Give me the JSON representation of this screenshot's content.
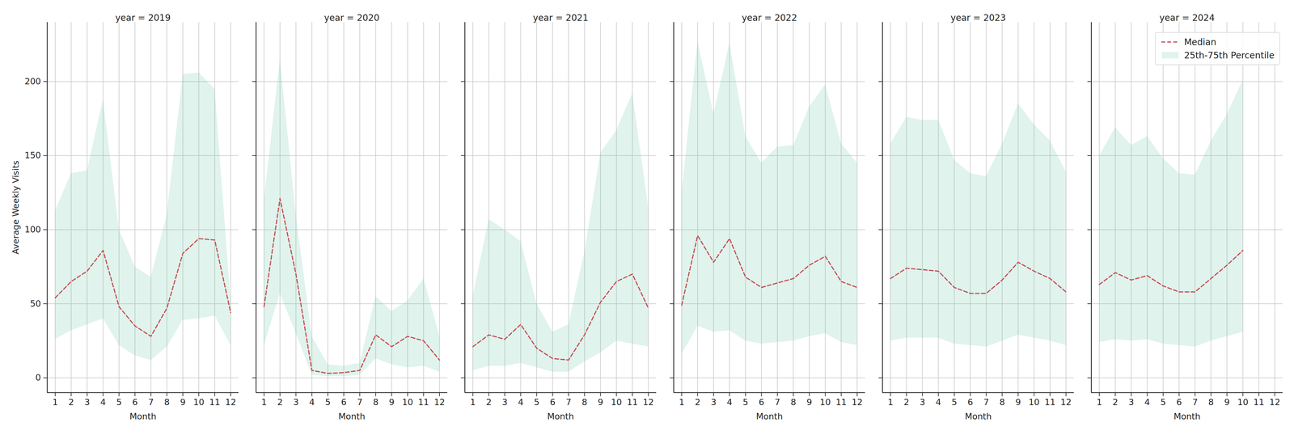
{
  "chart_data": [
    {
      "type": "line",
      "title": "year = 2019",
      "x_label": "Month",
      "y_label": "Average Weekly Visits",
      "x": [
        1,
        2,
        3,
        4,
        5,
        6,
        7,
        8,
        9,
        10,
        11,
        12
      ],
      "series": [
        {
          "name": "Median",
          "type": "line",
          "color": "#c44e52",
          "line_style": "dashed",
          "values": [
            54,
            65,
            72,
            86,
            48,
            35,
            28,
            47,
            84,
            94,
            93,
            44
          ]
        },
        {
          "name": "25th-75th Percentile",
          "type": "area",
          "color": "#66c2a5",
          "low": [
            26,
            32,
            36,
            40,
            22,
            15,
            12,
            21,
            39,
            40,
            42,
            22
          ],
          "high": [
            113,
            138,
            140,
            188,
            100,
            75,
            68,
            110,
            205,
            206,
            195,
            52
          ]
        }
      ],
      "xlim": [
        0.5,
        12.5
      ],
      "ylim": [
        -10,
        240
      ],
      "xticks": [
        1,
        2,
        3,
        4,
        5,
        6,
        7,
        8,
        9,
        10,
        11,
        12
      ],
      "yticks": [
        0,
        50,
        100,
        150,
        200
      ],
      "grid": true
    },
    {
      "type": "line",
      "title": "year = 2020",
      "x_label": "Month",
      "x": [
        1,
        2,
        3,
        4,
        5,
        6,
        7,
        8,
        9,
        10,
        11,
        12
      ],
      "series": [
        {
          "name": "Median",
          "type": "line",
          "color": "#c44e52",
          "line_style": "dashed",
          "values": [
            48,
            121,
            70,
            5,
            3,
            3.5,
            5,
            29,
            21,
            28,
            25,
            12
          ]
        },
        {
          "name": "25th-75th Percentile",
          "type": "area",
          "color": "#66c2a5",
          "low": [
            22,
            57,
            30,
            2,
            1,
            1,
            2,
            13,
            9,
            7,
            8,
            4
          ],
          "high": [
            120,
            215,
            110,
            28,
            9,
            8,
            10,
            55,
            45,
            52,
            67,
            28
          ]
        }
      ],
      "xlim": [
        0.5,
        12.5
      ],
      "ylim": [
        -10,
        240
      ],
      "xticks": [
        1,
        2,
        3,
        4,
        5,
        6,
        7,
        8,
        9,
        10,
        11,
        12
      ],
      "yticks": [
        0,
        50,
        100,
        150,
        200
      ],
      "grid": true,
      "tick_labels": "x"
    },
    {
      "type": "line",
      "title": "year = 2021",
      "x_label": "Month",
      "x": [
        1,
        2,
        3,
        4,
        5,
        6,
        7,
        8,
        9,
        10,
        11,
        12
      ],
      "series": [
        {
          "name": "Median",
          "type": "line",
          "color": "#c44e52",
          "line_style": "dashed",
          "values": [
            21,
            29,
            26,
            36,
            20,
            13,
            12,
            29,
            51,
            65,
            70,
            47
          ]
        },
        {
          "name": "25th-75th Percentile",
          "type": "area",
          "color": "#66c2a5",
          "low": [
            5,
            8,
            8,
            10,
            7,
            4,
            4,
            11,
            17,
            25,
            23,
            21
          ],
          "high": [
            55,
            107,
            100,
            92,
            50,
            31,
            36,
            85,
            152,
            167,
            192,
            115
          ]
        }
      ],
      "xlim": [
        0.5,
        12.5
      ],
      "ylim": [
        -10,
        240
      ],
      "xticks": [
        1,
        2,
        3,
        4,
        5,
        6,
        7,
        8,
        9,
        10,
        11,
        12
      ],
      "yticks": [
        0,
        50,
        100,
        150,
        200
      ],
      "grid": true,
      "tick_labels": "x"
    },
    {
      "type": "line",
      "title": "year = 2022",
      "x_label": "Month",
      "x": [
        1,
        2,
        3,
        4,
        5,
        6,
        7,
        8,
        9,
        10,
        11,
        12
      ],
      "series": [
        {
          "name": "Median",
          "type": "line",
          "color": "#c44e52",
          "line_style": "dashed",
          "values": [
            49,
            96,
            78,
            94,
            68,
            61,
            64,
            67,
            76,
            82,
            65,
            61
          ]
        },
        {
          "name": "25th-75th Percentile",
          "type": "area",
          "color": "#66c2a5",
          "low": [
            16,
            35,
            31,
            32,
            25,
            23,
            24,
            25,
            28,
            30,
            24,
            22
          ],
          "high": [
            125,
            227,
            178,
            226,
            163,
            145,
            156,
            157,
            183,
            198,
            158,
            145
          ]
        }
      ],
      "xlim": [
        0.5,
        12.5
      ],
      "ylim": [
        -10,
        240
      ],
      "xticks": [
        1,
        2,
        3,
        4,
        5,
        6,
        7,
        8,
        9,
        10,
        11,
        12
      ],
      "yticks": [
        0,
        50,
        100,
        150,
        200
      ],
      "grid": true,
      "tick_labels": "x"
    },
    {
      "type": "line",
      "title": "year = 2023",
      "x_label": "Month",
      "x": [
        1,
        2,
        3,
        4,
        5,
        6,
        7,
        8,
        9,
        10,
        11,
        12
      ],
      "series": [
        {
          "name": "Median",
          "type": "line",
          "color": "#c44e52",
          "line_style": "dashed",
          "values": [
            67,
            74,
            73,
            72,
            61,
            57,
            57,
            66,
            78,
            72,
            67,
            58
          ]
        },
        {
          "name": "25th-75th Percentile",
          "type": "area",
          "color": "#66c2a5",
          "low": [
            25,
            27,
            27,
            27,
            23,
            22,
            21,
            25,
            29,
            27,
            25,
            22
          ],
          "high": [
            158,
            176,
            174,
            174,
            147,
            138,
            136,
            158,
            185,
            171,
            160,
            139
          ]
        }
      ],
      "xlim": [
        0.5,
        12.5
      ],
      "ylim": [
        -10,
        240
      ],
      "xticks": [
        1,
        2,
        3,
        4,
        5,
        6,
        7,
        8,
        9,
        10,
        11,
        12
      ],
      "yticks": [
        0,
        50,
        100,
        150,
        200
      ],
      "grid": true,
      "tick_labels": "x"
    },
    {
      "type": "line",
      "title": "year = 2024",
      "x_label": "Month",
      "x": [
        1,
        2,
        3,
        4,
        5,
        6,
        7,
        8,
        9,
        10,
        11,
        12
      ],
      "series": [
        {
          "name": "Median",
          "type": "line",
          "color": "#c44e52",
          "line_style": "dashed",
          "values": [
            63,
            71,
            66,
            69,
            62,
            58,
            58,
            67,
            76,
            86,
            null,
            null
          ]
        },
        {
          "name": "25th-75th Percentile",
          "type": "area",
          "color": "#66c2a5",
          "low": [
            24,
            26,
            25,
            26,
            23,
            22,
            21,
            25,
            28,
            31,
            null,
            null
          ],
          "high": [
            150,
            169,
            157,
            163,
            148,
            138,
            137,
            160,
            178,
            201,
            null,
            null
          ]
        }
      ],
      "xlim": [
        0.5,
        12.5
      ],
      "ylim": [
        -10,
        240
      ],
      "xticks": [
        1,
        2,
        3,
        4,
        5,
        6,
        7,
        8,
        9,
        10,
        11,
        12
      ],
      "yticks": [
        0,
        50,
        100,
        150,
        200
      ],
      "grid": true,
      "tick_labels": "x",
      "legend": "upper right"
    }
  ]
}
